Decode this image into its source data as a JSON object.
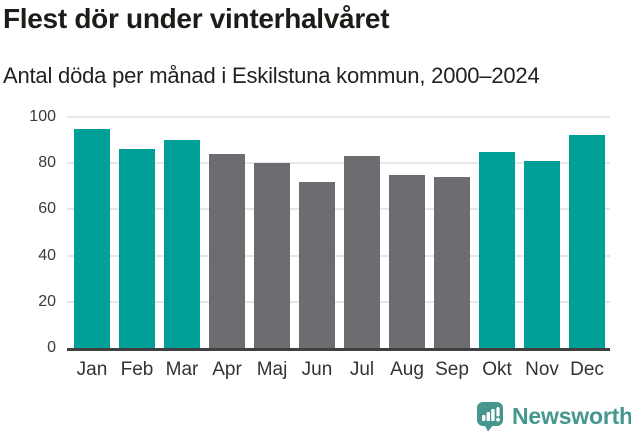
{
  "chart_data": {
    "type": "bar",
    "title": "Flest dör under vinterhalvåret",
    "subtitle": "Antal döda per månad i Eskilstuna kommun, 2000–2024",
    "categories": [
      "Jan",
      "Feb",
      "Mar",
      "Apr",
      "Maj",
      "Jun",
      "Jul",
      "Aug",
      "Sep",
      "Okt",
      "Nov",
      "Dec"
    ],
    "values": [
      95,
      86,
      90,
      84,
      80,
      72,
      83,
      75,
      74,
      85,
      81,
      92
    ],
    "highlight_flags": [
      1,
      1,
      1,
      0,
      0,
      0,
      0,
      0,
      0,
      1,
      1,
      1
    ],
    "xlabel": "",
    "ylabel": "",
    "ylim": [
      0,
      100
    ],
    "yticks": [
      0,
      20,
      40,
      60,
      80,
      100
    ],
    "grid": "horizontal",
    "legend_position": "none",
    "colors": {
      "bar_highlight": "#00a099",
      "bar_default": "#6d6d71",
      "gridline": "#e7e7e7",
      "axis_line": "#404040",
      "tick_label": "#3a3a3a",
      "title_text": "#1c1c18"
    }
  },
  "footer": {
    "brand": "Newsworthy",
    "brand_color": "#45968f",
    "logo_icon": "bar-chart-speech-bubble-icon"
  }
}
